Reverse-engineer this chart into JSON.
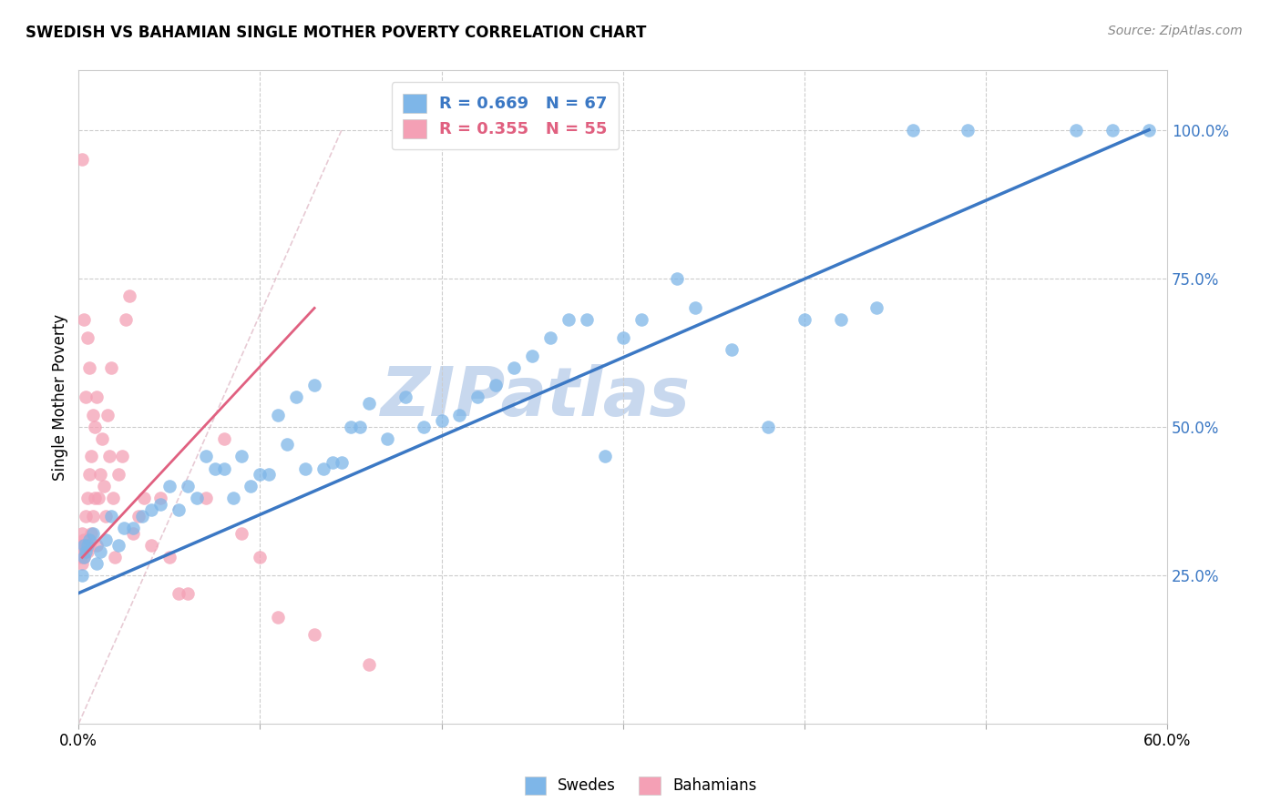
{
  "title": "SWEDISH VS BAHAMIAN SINGLE MOTHER POVERTY CORRELATION CHART",
  "source": "Source: ZipAtlas.com",
  "ylabel": "Single Mother Poverty",
  "xlim": [
    0.0,
    0.6
  ],
  "ylim": [
    0.0,
    1.1
  ],
  "blue_color": "#7EB6E8",
  "pink_color": "#F4A0B5",
  "blue_line_color": "#3B78C4",
  "pink_line_color": "#E06080",
  "blue_r": 0.669,
  "blue_n": 67,
  "pink_r": 0.355,
  "pink_n": 55,
  "watermark": "ZIPatlas",
  "watermark_color": "#C8D8EE",
  "blue_line_x0": 0.0,
  "blue_line_y0": 0.22,
  "blue_line_x1": 0.59,
  "blue_line_y1": 1.0,
  "pink_line_x0": 0.002,
  "pink_line_y0": 0.28,
  "pink_line_x1": 0.13,
  "pink_line_y1": 0.7,
  "ref_line_x0": 0.0,
  "ref_line_y0": 0.0,
  "ref_line_x1": 0.145,
  "ref_line_y1": 1.0,
  "swedes_x": [
    0.59,
    0.57,
    0.55,
    0.49,
    0.46,
    0.44,
    0.42,
    0.4,
    0.38,
    0.36,
    0.34,
    0.33,
    0.31,
    0.3,
    0.29,
    0.28,
    0.27,
    0.26,
    0.25,
    0.24,
    0.23,
    0.22,
    0.21,
    0.2,
    0.19,
    0.18,
    0.17,
    0.16,
    0.155,
    0.15,
    0.145,
    0.14,
    0.135,
    0.13,
    0.125,
    0.12,
    0.115,
    0.11,
    0.105,
    0.1,
    0.095,
    0.09,
    0.085,
    0.08,
    0.075,
    0.07,
    0.065,
    0.06,
    0.055,
    0.05,
    0.045,
    0.04,
    0.035,
    0.03,
    0.025,
    0.022,
    0.018,
    0.015,
    0.012,
    0.01,
    0.008,
    0.006,
    0.005,
    0.004,
    0.003,
    0.003,
    0.002
  ],
  "swedes_y": [
    1.0,
    1.0,
    1.0,
    1.0,
    1.0,
    0.7,
    0.68,
    0.68,
    0.5,
    0.63,
    0.7,
    0.75,
    0.68,
    0.65,
    0.45,
    0.68,
    0.68,
    0.65,
    0.62,
    0.6,
    0.57,
    0.55,
    0.52,
    0.51,
    0.5,
    0.55,
    0.48,
    0.54,
    0.5,
    0.5,
    0.44,
    0.44,
    0.43,
    0.57,
    0.43,
    0.55,
    0.47,
    0.52,
    0.42,
    0.42,
    0.4,
    0.45,
    0.38,
    0.43,
    0.43,
    0.45,
    0.38,
    0.4,
    0.36,
    0.4,
    0.37,
    0.36,
    0.35,
    0.33,
    0.33,
    0.3,
    0.35,
    0.31,
    0.29,
    0.27,
    0.32,
    0.31,
    0.3,
    0.29,
    0.28,
    0.3,
    0.25
  ],
  "bahamians_x": [
    0.001,
    0.001,
    0.002,
    0.002,
    0.002,
    0.003,
    0.003,
    0.003,
    0.003,
    0.004,
    0.004,
    0.004,
    0.005,
    0.005,
    0.005,
    0.006,
    0.006,
    0.006,
    0.007,
    0.007,
    0.008,
    0.008,
    0.009,
    0.009,
    0.01,
    0.01,
    0.011,
    0.012,
    0.013,
    0.014,
    0.015,
    0.016,
    0.017,
    0.018,
    0.019,
    0.02,
    0.022,
    0.024,
    0.026,
    0.028,
    0.03,
    0.033,
    0.036,
    0.04,
    0.045,
    0.05,
    0.055,
    0.06,
    0.07,
    0.08,
    0.09,
    0.1,
    0.11,
    0.13,
    0.16
  ],
  "bahamians_y": [
    0.3,
    0.28,
    0.27,
    0.32,
    0.95,
    0.28,
    0.31,
    0.68,
    0.3,
    0.3,
    0.35,
    0.55,
    0.29,
    0.38,
    0.65,
    0.3,
    0.42,
    0.6,
    0.32,
    0.45,
    0.35,
    0.52,
    0.38,
    0.5,
    0.3,
    0.55,
    0.38,
    0.42,
    0.48,
    0.4,
    0.35,
    0.52,
    0.45,
    0.6,
    0.38,
    0.28,
    0.42,
    0.45,
    0.68,
    0.72,
    0.32,
    0.35,
    0.38,
    0.3,
    0.38,
    0.28,
    0.22,
    0.22,
    0.38,
    0.48,
    0.32,
    0.28,
    0.18,
    0.15,
    0.1
  ]
}
